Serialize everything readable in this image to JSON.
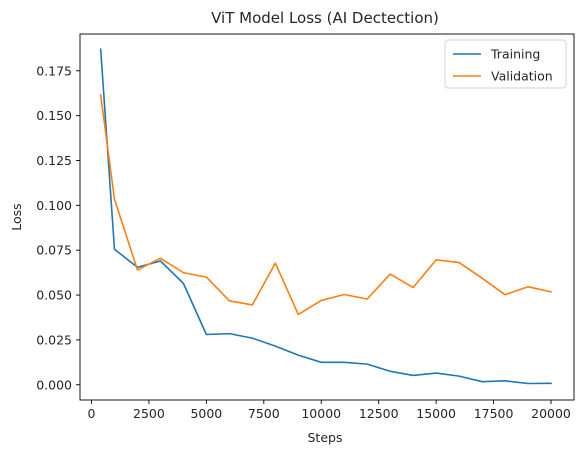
{
  "chart_data": {
    "type": "line",
    "title": "ViT Model Loss (AI Dectection)",
    "xlabel": "Steps",
    "ylabel": "Loss",
    "xlim": [
      -500,
      21000
    ],
    "ylim": [
      -0.0085,
      0.1955
    ],
    "xticks": [
      0,
      2500,
      5000,
      7500,
      10000,
      12500,
      15000,
      17500,
      20000
    ],
    "yticks": [
      0.0,
      0.025,
      0.05,
      0.075,
      0.1,
      0.125,
      0.15,
      0.175
    ],
    "xtick_labels": [
      "0",
      "2500",
      "5000",
      "7500",
      "10000",
      "12500",
      "15000",
      "17500",
      "20000"
    ],
    "ytick_labels": [
      "0.000",
      "0.025",
      "0.050",
      "0.075",
      "0.100",
      "0.125",
      "0.150",
      "0.175"
    ],
    "grid": false,
    "legend": "top-right",
    "series": [
      {
        "name": "Training",
        "color": "#1f77b4",
        "x": [
          400,
          1000,
          2000,
          3000,
          4000,
          5000,
          6000,
          7000,
          8000,
          9000,
          10000,
          11000,
          12000,
          13000,
          14000,
          15000,
          16000,
          17000,
          18000,
          19000,
          20000
        ],
        "y": [
          0.187,
          0.0755,
          0.0655,
          0.069,
          0.0565,
          0.028,
          0.0285,
          0.026,
          0.0215,
          0.0165,
          0.0125,
          0.0125,
          0.0115,
          0.0075,
          0.0052,
          0.0065,
          0.0048,
          0.0017,
          0.0022,
          0.0007,
          0.0008
        ]
      },
      {
        "name": "Validation",
        "color": "#ff7f0e",
        "x": [
          400,
          1000,
          2000,
          3000,
          4000,
          5000,
          6000,
          7000,
          8000,
          9000,
          10000,
          11000,
          12000,
          13000,
          14000,
          15000,
          16000,
          17000,
          18000,
          19000,
          20000
        ],
        "y": [
          0.1615,
          0.1035,
          0.064,
          0.0705,
          0.0625,
          0.06,
          0.0468,
          0.0445,
          0.0678,
          0.0392,
          0.047,
          0.0503,
          0.0478,
          0.0617,
          0.0542,
          0.0696,
          0.0681,
          0.0594,
          0.0502,
          0.0546,
          0.0518
        ]
      }
    ]
  }
}
